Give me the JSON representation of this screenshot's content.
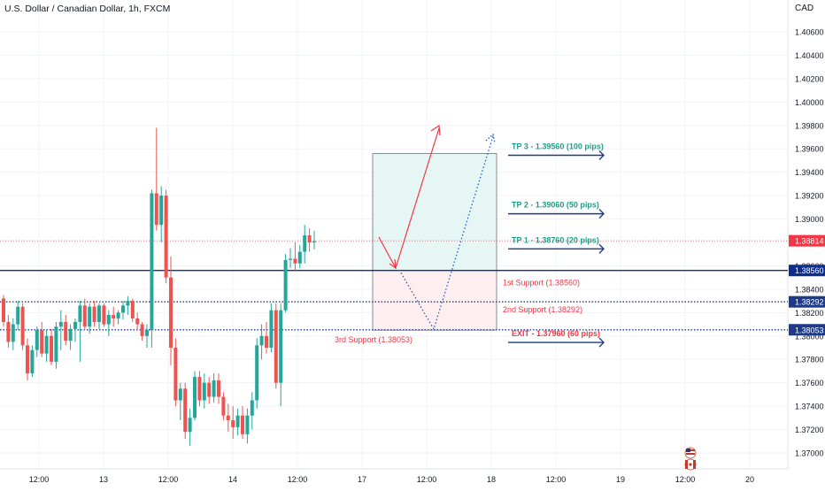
{
  "chart_title": "U.S. Dollar / Canadian Dollar, 1h, FXCM",
  "currency": "CAD",
  "chart_data": {
    "type": "candlestick",
    "y_ticks": [
      "1.40600",
      "1.40400",
      "1.40200",
      "1.40000",
      "1.39800",
      "1.39600",
      "1.39400",
      "1.39200",
      "1.39000",
      "1.38800",
      "1.38600",
      "1.38400",
      "1.38200",
      "1.38000",
      "1.37800",
      "1.37600",
      "1.37400",
      "1.37200",
      "1.37000"
    ],
    "x_ticks": [
      "12:00",
      "13",
      "12:00",
      "14",
      "12:00",
      "17",
      "12:00",
      "18",
      "12:00",
      "19",
      "12:00",
      "20"
    ],
    "ylim": [
      1.3693,
      1.4075
    ],
    "price_badges": [
      {
        "value": "1.38814",
        "color": "#f23645",
        "line": "dotted"
      },
      {
        "value": "1.38560",
        "color": "#0d2d8f",
        "line": "solid"
      },
      {
        "value": "1.38292",
        "color": "#1e3a8a",
        "line": "dotted"
      },
      {
        "value": "1.38053",
        "color": "#1e3a8a",
        "line": "dotted"
      }
    ],
    "levels": [
      {
        "label": "1st Support (1.38560)",
        "price": 1.3856
      },
      {
        "label": "2nd Support (1.38292)",
        "price": 1.38292
      },
      {
        "label": "3rd Support (1.38053)",
        "price": 1.38053
      }
    ],
    "targets": [
      {
        "label": "TP 3 - 1.39560 (100 pips)",
        "price": 1.3956,
        "color": "#1e9e89"
      },
      {
        "label": "TP 2 - 1.39060 (50 pips)",
        "price": 1.3906,
        "color": "#1e9e89"
      },
      {
        "label": "TP 1 - 1.38760 (20 pips)",
        "price": 1.3876,
        "color": "#1e9e89"
      },
      {
        "label": "EXIT - 1.37960 (60 pips)",
        "price": 1.3796,
        "color": "#f23645"
      }
    ],
    "candles": [
      [
        1.3832,
        1.3835,
        1.3808,
        1.3812
      ],
      [
        1.3812,
        1.3818,
        1.379,
        1.3795
      ],
      [
        1.3795,
        1.3815,
        1.3788,
        1.381
      ],
      [
        1.381,
        1.383,
        1.3805,
        1.3825
      ],
      [
        1.3825,
        1.3828,
        1.3788,
        1.3792
      ],
      [
        1.3792,
        1.3798,
        1.3762,
        1.3768
      ],
      [
        1.3768,
        1.3792,
        1.3765,
        1.3788
      ],
      [
        1.3788,
        1.3808,
        1.3782,
        1.3805
      ],
      [
        1.3805,
        1.3812,
        1.3782,
        1.3785
      ],
      [
        1.3785,
        1.3805,
        1.3778,
        1.38
      ],
      [
        1.38,
        1.3806,
        1.3775,
        1.3778
      ],
      [
        1.3778,
        1.3812,
        1.3772,
        1.3808
      ],
      [
        1.3808,
        1.3822,
        1.3788,
        1.3812
      ],
      [
        1.3812,
        1.3818,
        1.3792,
        1.3796
      ],
      [
        1.3796,
        1.381,
        1.3788,
        1.3806
      ],
      [
        1.3806,
        1.3815,
        1.3795,
        1.3812
      ],
      [
        1.3812,
        1.383,
        1.3778,
        1.3826
      ],
      [
        1.3826,
        1.3832,
        1.3805,
        1.3808
      ],
      [
        1.3808,
        1.3828,
        1.3802,
        1.3825
      ],
      [
        1.3825,
        1.383,
        1.3808,
        1.3812
      ],
      [
        1.3812,
        1.3828,
        1.3806,
        1.3826
      ],
      [
        1.3826,
        1.3828,
        1.3808,
        1.381
      ],
      [
        1.381,
        1.3822,
        1.38,
        1.3818
      ],
      [
        1.3818,
        1.3825,
        1.3808,
        1.3815
      ],
      [
        1.3815,
        1.3822,
        1.381,
        1.382
      ],
      [
        1.382,
        1.383,
        1.3814,
        1.3826
      ],
      [
        1.3826,
        1.3834,
        1.3818,
        1.383
      ],
      [
        1.383,
        1.3832,
        1.3812,
        1.3815
      ],
      [
        1.3815,
        1.382,
        1.3805,
        1.381
      ],
      [
        1.381,
        1.3812,
        1.3796,
        1.38
      ],
      [
        1.38,
        1.381,
        1.379,
        1.3805
      ],
      [
        1.3805,
        1.3925,
        1.379,
        1.3922
      ],
      [
        1.3922,
        1.3978,
        1.389,
        1.3895
      ],
      [
        1.3895,
        1.3928,
        1.388,
        1.392
      ],
      [
        1.392,
        1.3925,
        1.3845,
        1.385
      ],
      [
        1.385,
        1.3868,
        1.3775,
        1.379
      ],
      [
        1.379,
        1.3798,
        1.374,
        1.3745
      ],
      [
        1.3745,
        1.376,
        1.3728,
        1.3755
      ],
      [
        1.3755,
        1.376,
        1.3712,
        1.3718
      ],
      [
        1.3718,
        1.3738,
        1.3706,
        1.373
      ],
      [
        1.373,
        1.377,
        1.3728,
        1.3765
      ],
      [
        1.3765,
        1.377,
        1.374,
        1.3745
      ],
      [
        1.3745,
        1.3768,
        1.3738,
        1.376
      ],
      [
        1.376,
        1.3765,
        1.3742,
        1.3748
      ],
      [
        1.3748,
        1.3768,
        1.3743,
        1.3762
      ],
      [
        1.3762,
        1.3768,
        1.3742,
        1.3748
      ],
      [
        1.3748,
        1.3752,
        1.3728,
        1.3732
      ],
      [
        1.3732,
        1.3742,
        1.3718,
        1.3728
      ],
      [
        1.3728,
        1.374,
        1.3712,
        1.3722
      ],
      [
        1.3722,
        1.3738,
        1.3715,
        1.3732
      ],
      [
        1.3732,
        1.374,
        1.3712,
        1.3716
      ],
      [
        1.3716,
        1.3738,
        1.3708,
        1.3732
      ],
      [
        1.3732,
        1.3752,
        1.372,
        1.3745
      ],
      [
        1.3745,
        1.3798,
        1.3738,
        1.3792
      ],
      [
        1.3792,
        1.381,
        1.378,
        1.38
      ],
      [
        1.38,
        1.3812,
        1.3785,
        1.379
      ],
      [
        1.379,
        1.3828,
        1.3786,
        1.3822
      ],
      [
        1.3822,
        1.3828,
        1.3755,
        1.376
      ],
      [
        1.376,
        1.3828,
        1.374,
        1.3822
      ],
      [
        1.3822,
        1.387,
        1.382,
        1.3865
      ],
      [
        1.3865,
        1.3875,
        1.3858,
        1.3866
      ],
      [
        1.3866,
        1.388,
        1.3855,
        1.3862
      ],
      [
        1.3862,
        1.3878,
        1.3858,
        1.3872
      ],
      [
        1.3872,
        1.3895,
        1.3862,
        1.3886
      ],
      [
        1.3886,
        1.3892,
        1.3872,
        1.388
      ],
      [
        1.388,
        1.389,
        1.3874,
        1.3881
      ]
    ]
  },
  "flags": [
    "us-flag-icon",
    "canada-flag-icon"
  ]
}
